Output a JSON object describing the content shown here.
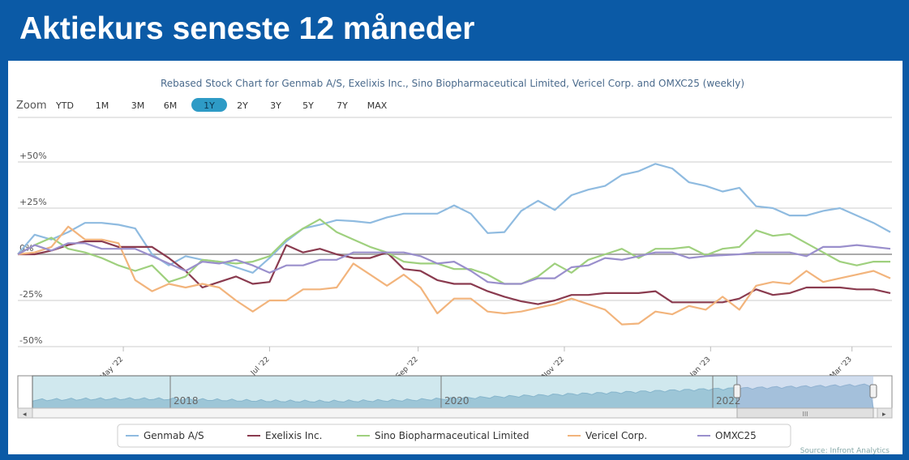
{
  "header": {
    "title": "Aktiekurs seneste 12 måneder"
  },
  "chart_data": {
    "type": "line",
    "title": "Rebased Stock Chart for Genmab A/S, Exelixis Inc., Sino Biopharmaceutical Limited, Vericel Corp. and OMXC25 (weekly)",
    "xlabel": "",
    "ylabel": "",
    "ylim": [
      -50,
      50
    ],
    "y_ticks": [
      {
        "value": 50,
        "label": "+50%"
      },
      {
        "value": 25,
        "label": "+25%"
      },
      {
        "value": 0,
        "label": "0%"
      },
      {
        "value": -25,
        "label": "-25%"
      },
      {
        "value": -50,
        "label": "-50%"
      }
    ],
    "x_ticks": [
      {
        "date": "2022-05-01",
        "label": "May '22"
      },
      {
        "date": "2022-07-01",
        "label": "Jul '22"
      },
      {
        "date": "2022-09-01",
        "label": "Sep '22"
      },
      {
        "date": "2022-11-01",
        "label": "Nov '22"
      },
      {
        "date": "2023-01-01",
        "label": "Jan '23"
      },
      {
        "date": "2023-03-01",
        "label": "Mar '23"
      }
    ],
    "grid": true,
    "legend_placement": "bottom",
    "x": [
      "2022-03-18",
      "2022-03-25",
      "2022-04-01",
      "2022-04-08",
      "2022-04-15",
      "2022-04-22",
      "2022-04-29",
      "2022-05-06",
      "2022-05-13",
      "2022-05-20",
      "2022-05-27",
      "2022-06-03",
      "2022-06-10",
      "2022-06-17",
      "2022-06-24",
      "2022-07-01",
      "2022-07-08",
      "2022-07-15",
      "2022-07-22",
      "2022-07-29",
      "2022-08-05",
      "2022-08-12",
      "2022-08-19",
      "2022-08-26",
      "2022-09-02",
      "2022-09-09",
      "2022-09-16",
      "2022-09-23",
      "2022-09-30",
      "2022-10-07",
      "2022-10-14",
      "2022-10-21",
      "2022-10-28",
      "2022-11-04",
      "2022-11-11",
      "2022-11-18",
      "2022-11-25",
      "2022-12-02",
      "2022-12-09",
      "2022-12-16",
      "2022-12-23",
      "2022-12-30",
      "2023-01-06",
      "2023-01-13",
      "2023-01-20",
      "2023-01-27",
      "2023-02-03",
      "2023-02-10",
      "2023-02-17",
      "2023-02-24",
      "2023-03-03",
      "2023-03-10",
      "2023-03-17"
    ],
    "series": [
      {
        "name": "Genmab A/S",
        "color": "#8fbbe0",
        "values": [
          0,
          10.6,
          8,
          12,
          17,
          17,
          16,
          14,
          0,
          -6,
          -1,
          -3,
          -4,
          -7,
          -10,
          -2,
          7,
          14,
          16,
          18.5,
          18,
          17,
          20,
          22,
          22,
          22,
          26.5,
          22,
          11.5,
          12,
          23.5,
          29,
          24,
          32,
          35,
          37,
          43,
          45,
          49,
          46.5,
          39,
          37,
          34,
          36,
          26,
          25,
          21,
          21,
          23.5,
          25,
          21,
          17,
          12
        ]
      },
      {
        "name": "Exelixis Inc.",
        "color": "#8a3b4f",
        "values": [
          0,
          0,
          2,
          5,
          7,
          7,
          4,
          4,
          4,
          -2,
          -9,
          -18,
          -15,
          -12,
          -16,
          -15,
          5,
          1,
          3,
          0,
          -2,
          -2,
          1,
          -8,
          -9,
          -14,
          -16,
          -16,
          -20,
          -23,
          -25.5,
          -27,
          -25,
          -22,
          -22,
          -21,
          -21,
          -21,
          -20,
          -26,
          -26,
          -26,
          -26,
          -24,
          -19,
          -22,
          -21,
          -18,
          -18,
          -18,
          -19,
          -19,
          -21
        ]
      },
      {
        "name": "Sino Biopharmaceutical Limited",
        "color": "#9fd07e",
        "values": [
          0,
          5,
          9,
          3,
          1,
          -2,
          -6,
          -9,
          -6,
          -15,
          -12,
          -3,
          -4,
          -5,
          -4,
          -1,
          8,
          14,
          19,
          12,
          8,
          4,
          1,
          -4,
          -5,
          -5,
          -8,
          -8,
          -11,
          -16,
          -16,
          -12,
          -5,
          -10,
          -3,
          0,
          3,
          -2,
          3,
          3,
          4,
          -0.5,
          3,
          4,
          13,
          10,
          11,
          6,
          1,
          -4,
          -6,
          -4,
          -4
        ]
      },
      {
        "name": "Vericel Corp.",
        "color": "#f2b47c",
        "values": [
          0,
          1,
          4,
          15,
          8,
          8,
          6,
          -14,
          -20,
          -16,
          -18,
          -16,
          -18,
          -25,
          -31,
          -25,
          -25,
          -19,
          -19,
          -18,
          -5,
          -11,
          -17,
          -11,
          -18,
          -32,
          -24,
          -24,
          -31,
          -32,
          -31,
          -29,
          -27,
          -24,
          -27,
          -30,
          -38,
          -37.5,
          -31,
          -32.5,
          -28,
          -30,
          -23,
          -30,
          -17,
          -15,
          -16,
          -9,
          -15,
          -13,
          -11,
          -9,
          -13
        ]
      },
      {
        "name": "OMXC25",
        "color": "#9a8fcc",
        "values": [
          0,
          5,
          2,
          6,
          6,
          3,
          3,
          3,
          -1,
          -5,
          -9,
          -4,
          -5,
          -3,
          -6,
          -10,
          -6,
          -6,
          -3,
          -3,
          1,
          1,
          1,
          1,
          -1,
          -5,
          -4,
          -9,
          -15,
          -16,
          -16,
          -13,
          -13,
          -7,
          -6,
          -2,
          -3,
          -1,
          1,
          1,
          -2,
          -1,
          -0.5,
          0,
          1,
          1,
          1,
          -1,
          4,
          4,
          5,
          4,
          3
        ]
      }
    ]
  },
  "zoom": {
    "label": "Zoom",
    "buttons": [
      {
        "label": "YTD"
      },
      {
        "label": "1M"
      },
      {
        "label": "3M"
      },
      {
        "label": "6M"
      },
      {
        "label": "1Y",
        "active": true
      },
      {
        "label": "2Y"
      },
      {
        "label": "3Y"
      },
      {
        "label": "5Y"
      },
      {
        "label": "7Y"
      },
      {
        "label": "MAX"
      }
    ],
    "active_color": "#2e9bc6"
  },
  "navigator": {
    "year_labels": [
      "2018",
      "2020",
      "2022"
    ],
    "scroll_grip": "III"
  },
  "source": "Source: Infront Analytics"
}
